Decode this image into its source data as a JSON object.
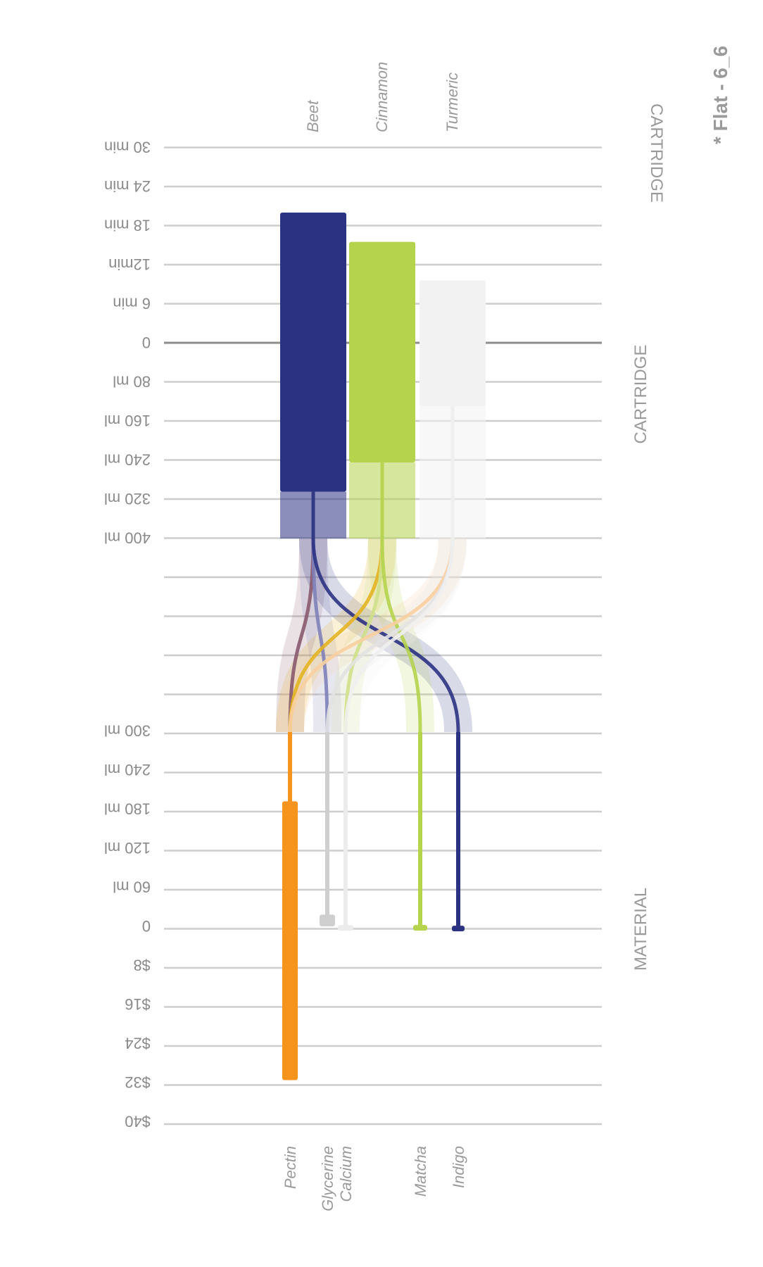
{
  "corner_title": "* Flat - 6_6",
  "chart_data": {
    "type": "sankey",
    "sections": {
      "top": "CARTRIDGE",
      "bottom": "MATERIAL"
    },
    "axes": {
      "time": {
        "labels": [
          "0",
          "6 min",
          "12min",
          "18 min",
          "24 min",
          "30 min"
        ],
        "values": [
          0,
          6,
          12,
          18,
          24,
          30
        ],
        "unit": "min"
      },
      "cartridge_volume": {
        "labels": [
          "80 ml",
          "160 ml",
          "240 ml",
          "320 ml",
          "400 ml"
        ],
        "values": [
          80,
          160,
          240,
          320,
          400
        ],
        "unit": "ml"
      },
      "material_volume": {
        "labels": [
          "0",
          "60 ml",
          "120 ml",
          "180 ml",
          "240 ml",
          "300 ml"
        ],
        "values": [
          0,
          60,
          120,
          180,
          240,
          300
        ],
        "unit": "ml"
      },
      "cost": {
        "labels": [
          "$8",
          "$16",
          "$24",
          "$32",
          "$40"
        ],
        "values": [
          8,
          16,
          24,
          32,
          40
        ],
        "unit": "$"
      }
    },
    "cartridges": [
      {
        "name": "Beet",
        "color": "#2b3282",
        "time": 20,
        "volume": 305
      },
      {
        "name": "Cinnamon",
        "color": "#b5d34c",
        "time": 15.5,
        "volume": 245
      },
      {
        "name": "Turmeric",
        "color": "#f2f2f3",
        "time": 9.6,
        "volume": 130
      }
    ],
    "materials": [
      {
        "name": "Pectin",
        "color": "#f7941d",
        "volume": 192,
        "cost": 31.5
      },
      {
        "name": "Glycerine",
        "color": "#cfcfcf",
        "volume": 18,
        "cost": 0
      },
      {
        "name": "Calcium",
        "color": "#ececec",
        "volume": 2,
        "cost": 0
      },
      {
        "name": "Matcha",
        "color": "#b5d34c",
        "volume": 2,
        "cost": 0
      },
      {
        "name": "Indigo",
        "color": "#2b3282",
        "volume": 1,
        "cost": 0
      }
    ],
    "flows": [
      {
        "from": "Beet",
        "to": "Pectin",
        "color": "#8a5a6e"
      },
      {
        "from": "Beet",
        "to": "Glycerine",
        "color": "#7e80b8"
      },
      {
        "from": "Beet",
        "to": "Indigo",
        "color": "#2b3282"
      },
      {
        "from": "Cinnamon",
        "to": "Pectin",
        "color": "#e3b422"
      },
      {
        "from": "Cinnamon",
        "to": "Calcium",
        "color": "#cfe08a"
      },
      {
        "from": "Cinnamon",
        "to": "Matcha",
        "color": "#b5d34c"
      },
      {
        "from": "Turmeric",
        "to": "Pectin",
        "color": "#f8cfa0"
      },
      {
        "from": "Turmeric",
        "to": "Glycerine",
        "color": "#e2e2e2"
      },
      {
        "from": "Turmeric",
        "to": "Calcium",
        "color": "#f0f0f0"
      }
    ]
  }
}
